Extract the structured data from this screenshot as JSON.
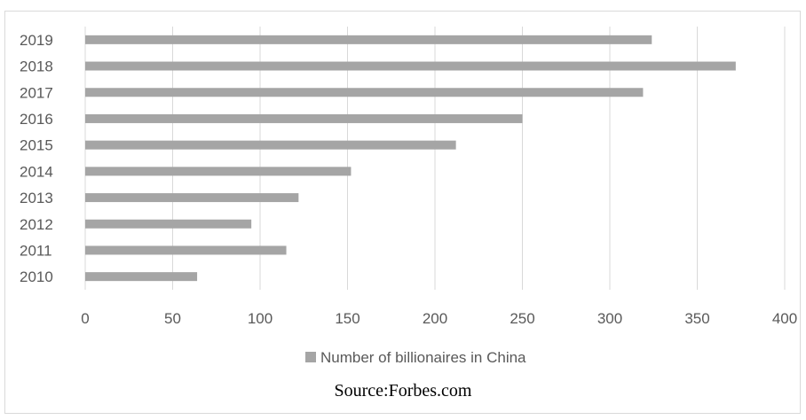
{
  "chart_data": {
    "type": "bar",
    "orientation": "horizontal",
    "categories": [
      "2010",
      "2011",
      "2012",
      "2013",
      "2014",
      "2015",
      "2016",
      "2017",
      "2018",
      "2019"
    ],
    "series": [
      {
        "name": "Number of billionaires in China",
        "values": [
          64,
          115,
          95,
          122,
          152,
          212,
          250,
          319,
          372,
          324
        ],
        "color": "#a5a5a5"
      }
    ],
    "xlim": [
      0,
      400
    ],
    "x_ticks": [
      0,
      50,
      100,
      150,
      200,
      250,
      300,
      350,
      400
    ],
    "grid": "vertical",
    "legend_position": "bottom",
    "title": "",
    "xlabel": "",
    "ylabel": ""
  },
  "source": "Source:Forbes.com"
}
